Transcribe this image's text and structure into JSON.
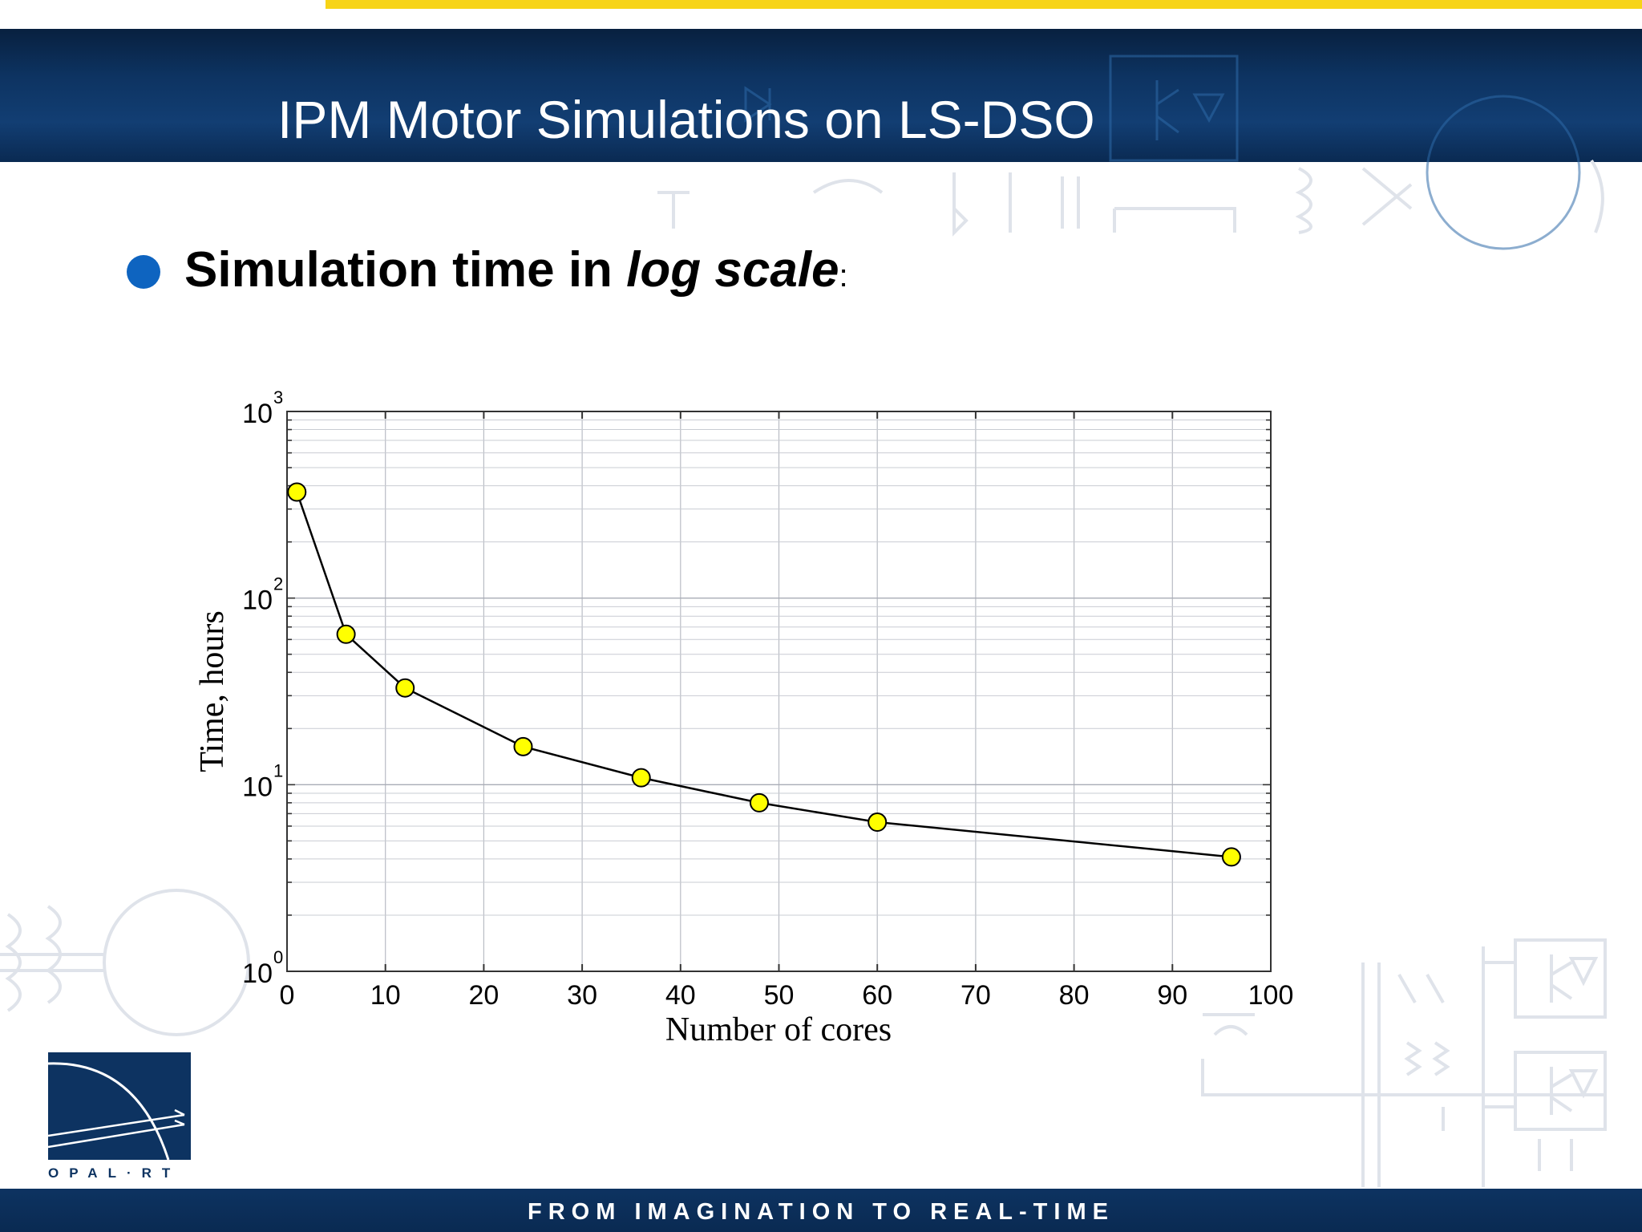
{
  "slide": {
    "title": "IPM Motor Simulations on LS-DSO",
    "bullet": {
      "text_normal": "Simulation time in ",
      "text_italic": "log scale",
      "colon": ":"
    },
    "footer": "FROM IMAGINATION TO REAL-TIME",
    "logo_text": "OPAL·RT",
    "colors": {
      "header": "#0d3361",
      "accent_bar": "#f7d417",
      "bullet": "#0e64c0",
      "marker": "#ffff00"
    }
  },
  "chart_data": {
    "type": "line",
    "xlabel": "Number of cores",
    "ylabel": "Time, hours",
    "xlim": [
      0,
      100
    ],
    "ylim": [
      1,
      1000
    ],
    "yscale": "log",
    "grid": true,
    "x_ticks": [
      0,
      10,
      20,
      30,
      40,
      50,
      60,
      70,
      80,
      90,
      100
    ],
    "y_ticks": [
      {
        "base": "10",
        "exp": "0",
        "value": 1
      },
      {
        "base": "10",
        "exp": "1",
        "value": 10
      },
      {
        "base": "10",
        "exp": "2",
        "value": 100
      },
      {
        "base": "10",
        "exp": "3",
        "value": 1000
      }
    ],
    "series": [
      {
        "x": [
          1,
          6,
          12,
          24,
          36,
          48,
          60,
          96
        ],
        "y": [
          370,
          64,
          33,
          16,
          10.9,
          8,
          6.3,
          4.1
        ]
      }
    ]
  }
}
